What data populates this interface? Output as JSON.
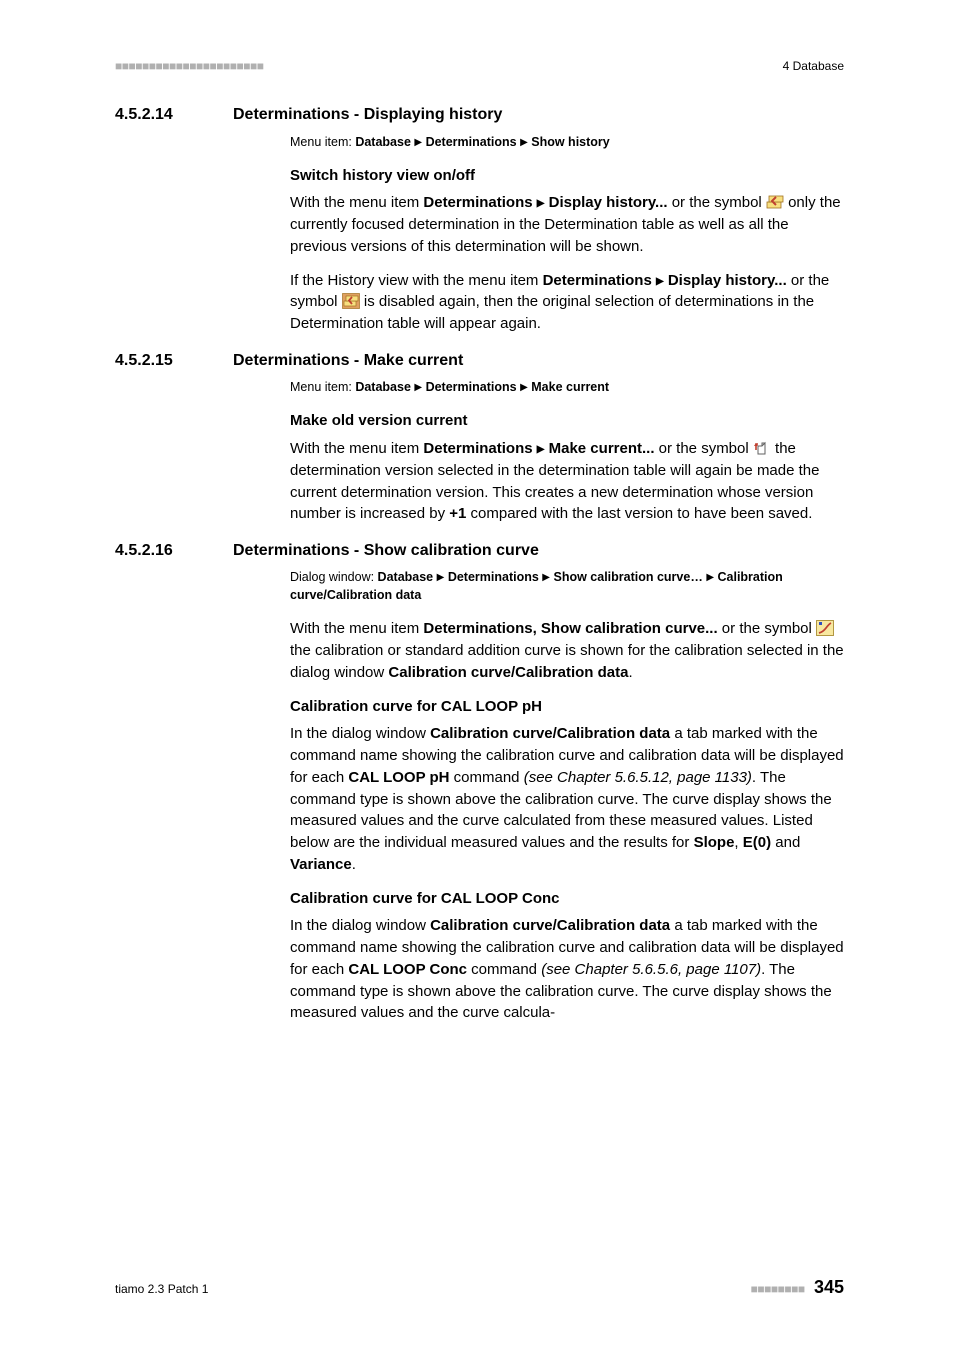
{
  "header": {
    "left_bars": "■■■■■■■■■■■■■■■■■■■■■■",
    "right_text": "4 Database"
  },
  "sections": [
    {
      "num": "4.5.2.14",
      "title": "Determinations - Displaying history",
      "menu_prefix": "Menu item: ",
      "menu_html": "<b>Database</b> <span class=\"tri\">▶</span> <b>Determinations</b> <span class=\"tri\">▶</span> <b>Show history</b>",
      "subs": [
        {
          "heading": "Switch history view on/off",
          "paras_html": [
            "With the menu item <b>Determinations <span class=\"tri\">▶</span> Display history...</b> or the symbol <svg class=\"icon-inline\" data-name=\"history-toggle-icon\" data-interactable=\"false\" viewBox=\"0 0 18 16\"><rect x=\"1\" y=\"8\" width=\"14\" height=\"6\" fill=\"#f8e080\" stroke=\"#a07020\" stroke-width=\"0.8\"/><rect x=\"3\" y=\"2\" width=\"14\" height=\"6\" fill=\"#f8e080\" stroke=\"#a07020\" stroke-width=\"0.8\"/><path d=\"M10 3 L6 7 L10 11\" fill=\"none\" stroke=\"#c04030\" stroke-width=\"2\"/></svg> only the currently focused determination in the Determination table as well as all the previous versions of this determination will be shown.",
            "If the History view with the menu item <b>Determinations <span class=\"tri\">▶</span> Display history...</b> or the symbol <svg class=\"icon-inline\" data-name=\"history-toggle-active-icon\" data-interactable=\"false\" viewBox=\"0 0 18 16\"><rect x=\"0.5\" y=\"0.5\" width=\"17\" height=\"15\" fill=\"#e0a060\" stroke=\"#a07020\" stroke-width=\"0.7\"/><rect x=\"2\" y=\"8\" width=\"12\" height=\"5\" fill=\"#f8e080\" stroke=\"#a07020\" stroke-width=\"0.7\"/><rect x=\"4\" y=\"3\" width=\"12\" height=\"5\" fill=\"#f8e080\" stroke=\"#a07020\" stroke-width=\"0.7\"/><path d=\"M10 4 L7 7.5 L10 11\" fill=\"none\" stroke=\"#c04030\" stroke-width=\"1.8\"/></svg> is disabled again, then the original selection of determinations in the Determination table will appear again."
          ]
        }
      ]
    },
    {
      "num": "4.5.2.15",
      "title": "Determinations - Make current",
      "menu_prefix": "Menu item: ",
      "menu_html": "<b>Database</b> <span class=\"tri\">▶</span> <b>Determinations</b> <span class=\"tri\">▶</span> <b>Make current</b>",
      "subs": [
        {
          "heading": "Make old version current",
          "paras_html": [
            "With the menu item <b>Determinations <span class=\"tri\">▶</span> Make current...</b> or the symbol <svg class=\"icon-inline\" data-name=\"make-current-icon\" data-interactable=\"false\" viewBox=\"0 0 18 16\"><path d=\"M5 14 L5 6 L9 6 L12 3 L12 14 Z\" fill=\"#ffffff\" stroke=\"#606060\" stroke-width=\"1\"/><path d=\"M9 6 L9 3 L12 3\" fill=\"none\" stroke=\"#606060\" stroke-width=\"1\"/><path d=\"M3 10 L3 4 L5 4\" fill=\"none\" stroke=\"#c04030\" stroke-width=\"1.6\"/><path d=\"M1 6 L3 3 L5 6\" fill=\"#c04030\"/></svg> the determination version selected in the determination table will again be made the current determination version. This creates a new determination whose version number is increased by <b>+1</b> compared with the last version to have been saved."
          ]
        }
      ]
    },
    {
      "num": "4.5.2.16",
      "title": "Determinations - Show calibration curve",
      "menu_prefix": "Dialog window: ",
      "menu_html": "<b>Database</b> <span class=\"tri\">▶</span> <b>Determinations</b> <span class=\"tri\">▶</span> <b>Show calibration curve…</b> <span class=\"tri\">▶</span> <b>Calibration curve/Calibration data</b>",
      "lead_para_html": "With the menu item <b>Determinations, Show calibration curve...</b> or the symbol <svg class=\"icon-inline\" data-name=\"calibration-curve-icon\" data-interactable=\"false\" viewBox=\"0 0 18 16\"><rect x=\"0.5\" y=\"0.5\" width=\"17\" height=\"15\" fill=\"#f8e8a0\" stroke=\"#a08020\" stroke-width=\"0.8\"/><path d=\"M3 13 Q 7 12 10 8 Q 13 4 15 3\" fill=\"none\" stroke=\"#c04030\" stroke-width=\"1.8\"/><rect x=\"3\" y=\"2\" width=\"3\" height=\"3\" fill=\"#3050c0\"/></svg> the calibration or standard addition curve is shown for the calibration selected in the dialog window <b>Calibration curve/Calibration data</b>.",
      "subs": [
        {
          "heading": "Calibration curve for CAL LOOP pH",
          "paras_html": [
            "In the dialog window <b>Calibration curve/Calibration data</b> a tab marked with the command name showing the calibration curve and calibration data will be displayed for each <b>CAL LOOP pH</b> command <i>(see Chapter 5.6.5.12, page 1133)</i>. The command type is shown above the calibration curve. The curve display shows the measured values and the curve calculated from these measured values. Listed below are the individual measured values and the results for <b>Slope</b>, <b>E(0)</b> and <b>Variance</b>."
          ]
        },
        {
          "heading": "Calibration curve for CAL LOOP Conc",
          "paras_html": [
            "In the dialog window <b>Calibration curve/Calibration data</b> a tab marked with the command name showing the calibration curve and calibration data will be displayed for each <b>CAL LOOP Conc</b> command <i>(see Chapter 5.6.5.6, page 1107)</i>. The command type is shown above the calibration curve. The curve display shows the measured values and the curve calcula-"
          ]
        }
      ]
    }
  ],
  "footer": {
    "left_text": "tiamo 2.3 Patch 1",
    "right_bars": "■■■■■■■■",
    "page_number": "345"
  }
}
